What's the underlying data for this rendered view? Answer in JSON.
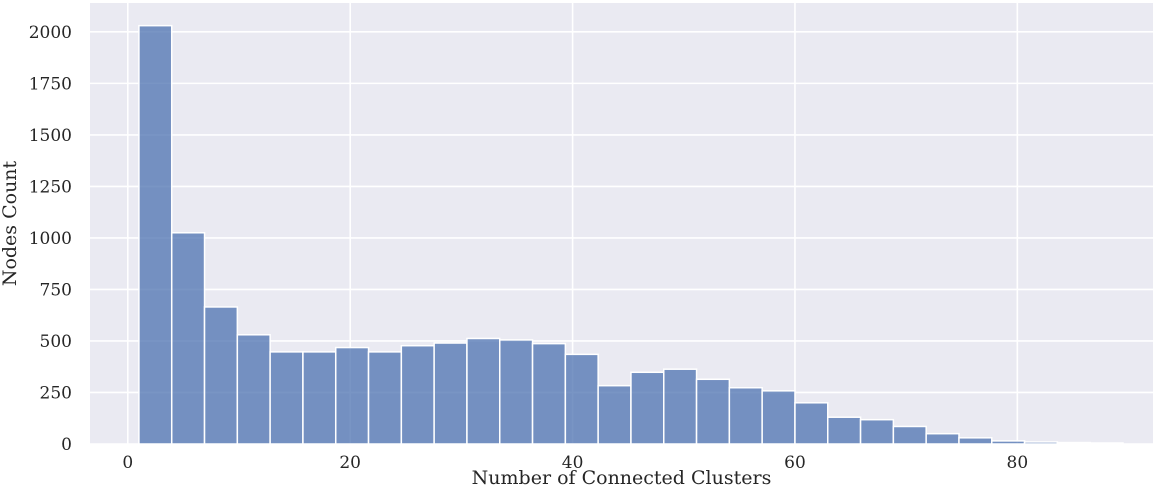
{
  "chart_data": {
    "type": "bar",
    "title": "",
    "xlabel": "Number of Connected Clusters",
    "ylabel": "Nodes Count",
    "x_ticks": [
      0,
      20,
      40,
      60,
      80
    ],
    "y_ticks": [
      0,
      250,
      500,
      750,
      1000,
      1250,
      1500,
      1750,
      2000
    ],
    "xlim": [
      -3.4,
      92.2
    ],
    "ylim": [
      0,
      2140
    ],
    "bin_width": 2.95,
    "bin_start": 1,
    "values": [
      2030,
      1025,
      665,
      530,
      447,
      447,
      468,
      447,
      477,
      490,
      512,
      505,
      487,
      435,
      283,
      348,
      363,
      314,
      273,
      258,
      200,
      130,
      118,
      85,
      50,
      30,
      15,
      10,
      7,
      5
    ],
    "grid": true,
    "legend": "none",
    "colors": {
      "background": "#eaeaf2",
      "bar": "#4c72b0",
      "grid": "#ffffff"
    }
  }
}
